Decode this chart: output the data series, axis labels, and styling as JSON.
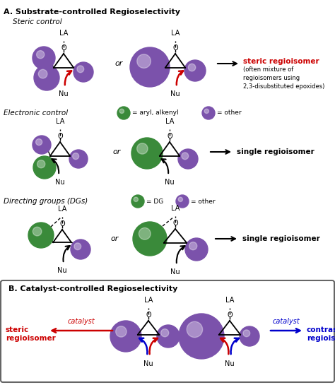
{
  "title_A": "A. Substrate-controlled Regioselectivity",
  "title_B": "B. Catalyst-controlled Regioselectivity",
  "steric_control": "Steric control",
  "electronic_control": "Electronic control",
  "directing_groups": "Directing groups (DGs)",
  "steric_result": "steric regioisomer",
  "steric_sub": "(often mixture of\nregioisomers using\n2,3-disubstituted epoxides)",
  "single_regioisomer": "single regioisomer",
  "steric_regioisomer": "steric\nregioisomer",
  "contrasteric": "contrasteric\nregioisomer",
  "catalyst_text": "catalyst",
  "purple": "#7B52AB",
  "green": "#3A8A3A",
  "red": "#CC0000",
  "blue": "#0000CC",
  "black": "#000000",
  "bg_color": "#FFFFFF",
  "fig_width": 4.74,
  "fig_height": 5.45,
  "dpi": 100
}
